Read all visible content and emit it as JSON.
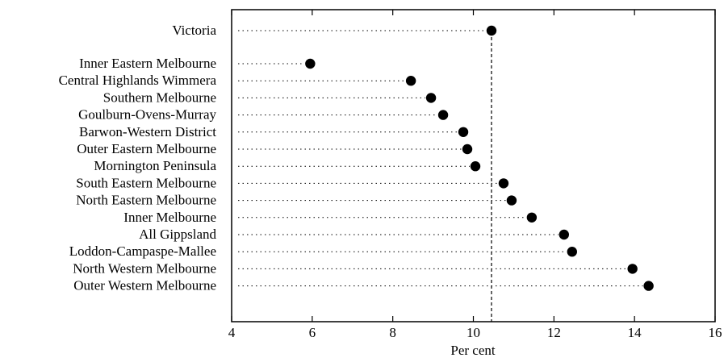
{
  "chart_data": {
    "type": "scatter",
    "subtype": "dot-plot",
    "title": "",
    "xlabel": "Per cent",
    "ylabel": "",
    "xlim": [
      4,
      16
    ],
    "xticks": [
      4,
      6,
      8,
      10,
      12,
      14,
      16
    ],
    "grid": false,
    "legend": "none",
    "reference_line": {
      "label": "Victoria",
      "value": 10.45
    },
    "categories": [
      "Victoria",
      "Inner Eastern Melbourne",
      "Central Highlands Wimmera",
      "Southern Melbourne",
      "Goulburn-Ovens-Murray",
      "Barwon-Western District",
      "Outer Eastern Melbourne",
      "Mornington Peninsula",
      "South Eastern Melbourne",
      "North Eastern Melbourne",
      "Inner Melbourne",
      "All Gippsland",
      "Loddon-Campaspe-Mallee",
      "North Western Melbourne",
      "Outer Western Melbourne"
    ],
    "values": [
      10.45,
      5.95,
      8.45,
      8.95,
      9.25,
      9.75,
      9.85,
      10.05,
      10.75,
      10.95,
      11.45,
      12.25,
      12.45,
      13.95,
      14.35
    ]
  },
  "colors": {
    "ink": "#000000",
    "background": "#ffffff"
  }
}
